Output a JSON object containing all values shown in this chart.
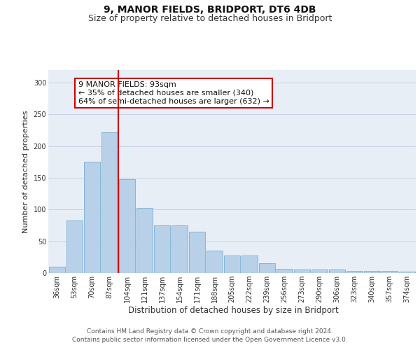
{
  "title1": "9, MANOR FIELDS, BRIDPORT, DT6 4DB",
  "title2": "Size of property relative to detached houses in Bridport",
  "xlabel": "Distribution of detached houses by size in Bridport",
  "ylabel": "Number of detached properties",
  "categories": [
    "36sqm",
    "53sqm",
    "70sqm",
    "87sqm",
    "104sqm",
    "121sqm",
    "137sqm",
    "154sqm",
    "171sqm",
    "188sqm",
    "205sqm",
    "222sqm",
    "239sqm",
    "256sqm",
    "273sqm",
    "290sqm",
    "306sqm",
    "323sqm",
    "340sqm",
    "357sqm",
    "374sqm"
  ],
  "values": [
    10,
    83,
    175,
    222,
    148,
    103,
    75,
    75,
    65,
    35,
    28,
    28,
    15,
    7,
    5,
    5,
    5,
    3,
    3,
    3,
    2
  ],
  "bar_color": "#b8d0e8",
  "bar_edge_color": "#7aafd4",
  "vline_x": 3.5,
  "vline_color": "#cc0000",
  "annotation_text": "9 MANOR FIELDS: 93sqm\n← 35% of detached houses are smaller (340)\n64% of semi-detached houses are larger (632) →",
  "annotation_box_color": "#ffffff",
  "annotation_box_edge_color": "#cc0000",
  "ylim": [
    0,
    320
  ],
  "yticks": [
    0,
    50,
    100,
    150,
    200,
    250,
    300
  ],
  "grid_color": "#c8d4e4",
  "bg_color": "#e8eef6",
  "footer1": "Contains HM Land Registry data © Crown copyright and database right 2024.",
  "footer2": "Contains public sector information licensed under the Open Government Licence v3.0.",
  "title1_fontsize": 10,
  "title2_fontsize": 9,
  "xlabel_fontsize": 8.5,
  "ylabel_fontsize": 8,
  "tick_fontsize": 7,
  "annotation_fontsize": 8,
  "footer_fontsize": 6.5
}
